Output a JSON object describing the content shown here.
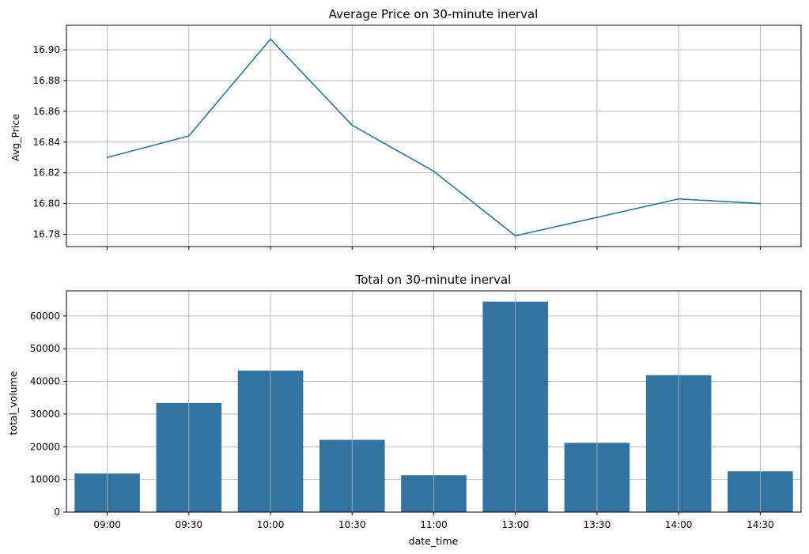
{
  "chart_data": [
    {
      "type": "line",
      "title": "Average Price on 30-minute inerval",
      "xlabel": "",
      "ylabel": "Avg_Price",
      "categories": [
        "09:00",
        "09:30",
        "10:00",
        "10:30",
        "11:00",
        "13:00",
        "13:30",
        "14:00",
        "14:30"
      ],
      "values": [
        16.83,
        16.844,
        16.907,
        16.851,
        16.821,
        16.779,
        16.791,
        16.803,
        16.8
      ],
      "ylim": [
        16.772,
        16.916
      ],
      "yticks": [
        "16.78",
        "16.80",
        "16.82",
        "16.84",
        "16.86",
        "16.88",
        "16.90"
      ],
      "show_x_tick_labels": false,
      "grid": true,
      "color": "#1f77b4"
    },
    {
      "type": "bar",
      "title": "Total on 30-minute inerval",
      "xlabel": "date_time",
      "ylabel": "total_volume",
      "categories": [
        "09:00",
        "09:30",
        "10:00",
        "10:30",
        "11:00",
        "13:00",
        "13:30",
        "14:00",
        "14:30"
      ],
      "values": [
        11800,
        33400,
        43300,
        22100,
        11300,
        64400,
        21200,
        41900,
        12500
      ],
      "ylim": [
        0,
        67700
      ],
      "yticks": [
        "0",
        "10000",
        "20000",
        "30000",
        "40000",
        "50000",
        "60000"
      ],
      "show_x_tick_labels": true,
      "grid": true,
      "color": "#3274a1"
    }
  ]
}
